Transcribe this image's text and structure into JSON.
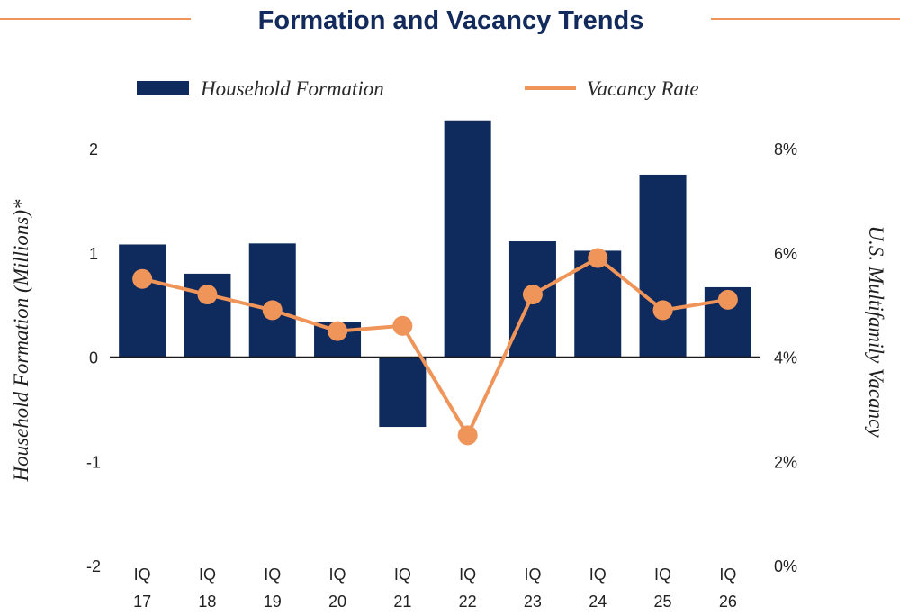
{
  "chart_data": {
    "type": "bar+line",
    "title": "Formation and Vacancy Trends",
    "categories": [
      [
        "IQ",
        "17"
      ],
      [
        "IQ",
        "18"
      ],
      [
        "IQ",
        "19"
      ],
      [
        "IQ",
        "20"
      ],
      [
        "IQ",
        "21"
      ],
      [
        "IQ",
        "22"
      ],
      [
        "IQ",
        "23"
      ],
      [
        "IQ",
        "24"
      ],
      [
        "IQ",
        "25"
      ],
      [
        "IQ",
        "26"
      ]
    ],
    "series": [
      {
        "name": "Household Formation",
        "type": "bar",
        "axis": "left",
        "color": "#0f2a5c",
        "values": [
          1.08,
          0.8,
          1.09,
          0.34,
          -0.67,
          2.27,
          1.11,
          1.02,
          1.75,
          0.67
        ]
      },
      {
        "name": "Vacancy Rate",
        "type": "line",
        "axis": "right",
        "color": "#f0955a",
        "values": [
          5.5,
          5.2,
          4.9,
          4.5,
          4.6,
          2.5,
          5.2,
          5.9,
          4.9,
          5.1
        ]
      }
    ],
    "y_left": {
      "label": "Household Formation (Millions)*",
      "ticks": [
        "2",
        "1",
        "0",
        "-1",
        "-2"
      ],
      "tick_values": [
        2,
        1,
        0,
        -1,
        -2
      ],
      "range": [
        -2,
        2
      ]
    },
    "y_right": {
      "label": "U.S. Multifamily Vacancy",
      "ticks": [
        "8%",
        "6%",
        "4%",
        "2%",
        "0%"
      ],
      "tick_values": [
        8,
        6,
        4,
        2,
        0
      ],
      "range": [
        0,
        8
      ]
    },
    "legend": "top",
    "grid": false,
    "colors": {
      "title": "#122a5c",
      "accent_rule": "#f0955a",
      "bar": "#0f2a5c",
      "line": "#f0955a"
    }
  }
}
